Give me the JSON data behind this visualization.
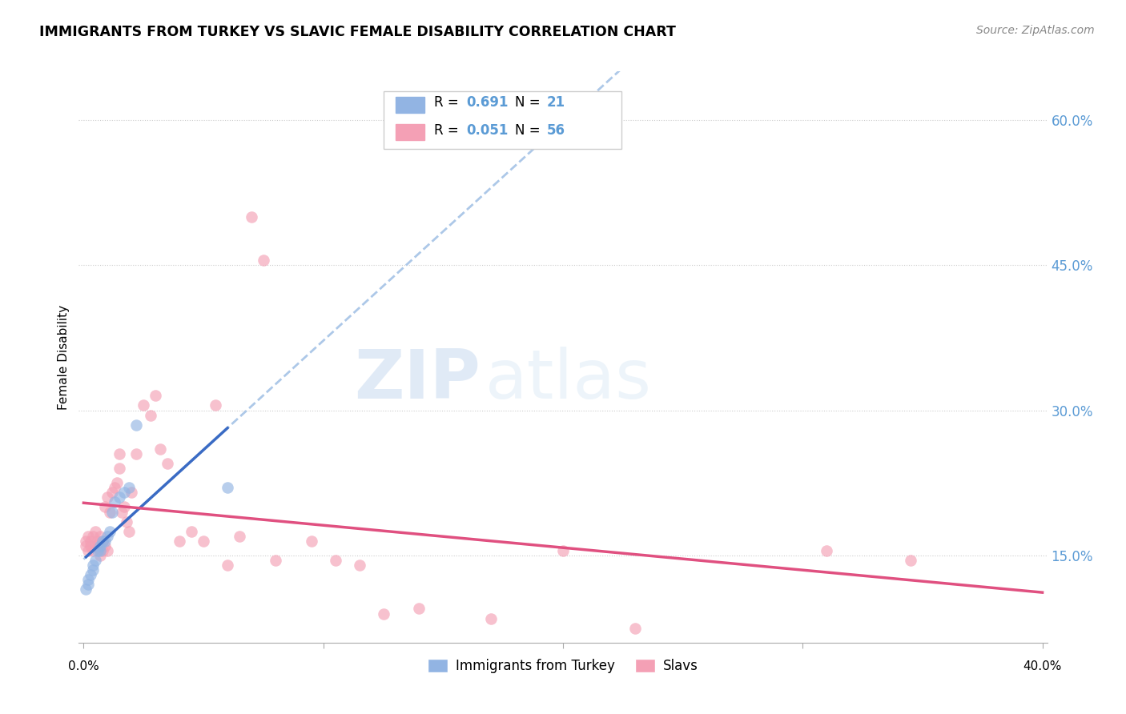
{
  "title": "IMMIGRANTS FROM TURKEY VS SLAVIC FEMALE DISABILITY CORRELATION CHART",
  "source": "Source: ZipAtlas.com",
  "ylabel": "Female Disability",
  "xlim": [
    0.0,
    0.4
  ],
  "ylim": [
    0.06,
    0.65
  ],
  "yticks": [
    0.15,
    0.3,
    0.45,
    0.6
  ],
  "ytick_labels": [
    "15.0%",
    "30.0%",
    "45.0%",
    "60.0%"
  ],
  "turkey_R": "0.691",
  "turkey_N": "21",
  "slavs_R": "0.051",
  "slavs_N": "56",
  "turkey_color": "#92B4E3",
  "slavs_color": "#F4A0B5",
  "turkey_line_color": "#3a6bc4",
  "slavs_line_color": "#e05080",
  "dashed_line_color": "#adc8e8",
  "watermark_zip": "ZIP",
  "watermark_atlas": "atlas",
  "turkey_points_x": [
    0.001,
    0.002,
    0.002,
    0.003,
    0.004,
    0.004,
    0.005,
    0.006,
    0.007,
    0.007,
    0.008,
    0.009,
    0.01,
    0.011,
    0.012,
    0.013,
    0.015,
    0.017,
    0.019,
    0.022,
    0.06
  ],
  "turkey_points_y": [
    0.115,
    0.12,
    0.125,
    0.13,
    0.135,
    0.14,
    0.145,
    0.155,
    0.155,
    0.16,
    0.165,
    0.165,
    0.17,
    0.175,
    0.195,
    0.205,
    0.21,
    0.215,
    0.22,
    0.285,
    0.22
  ],
  "slavs_points_x": [
    0.001,
    0.001,
    0.002,
    0.002,
    0.003,
    0.003,
    0.004,
    0.004,
    0.005,
    0.005,
    0.006,
    0.006,
    0.007,
    0.007,
    0.008,
    0.008,
    0.009,
    0.009,
    0.01,
    0.01,
    0.011,
    0.012,
    0.013,
    0.014,
    0.015,
    0.015,
    0.016,
    0.017,
    0.018,
    0.019,
    0.02,
    0.022,
    0.025,
    0.028,
    0.03,
    0.032,
    0.035,
    0.04,
    0.045,
    0.05,
    0.055,
    0.06,
    0.065,
    0.07,
    0.075,
    0.08,
    0.095,
    0.105,
    0.115,
    0.125,
    0.14,
    0.17,
    0.2,
    0.23,
    0.31,
    0.345
  ],
  "slavs_points_y": [
    0.16,
    0.165,
    0.155,
    0.17,
    0.16,
    0.165,
    0.155,
    0.17,
    0.16,
    0.175,
    0.158,
    0.165,
    0.15,
    0.17,
    0.155,
    0.165,
    0.16,
    0.2,
    0.155,
    0.21,
    0.195,
    0.215,
    0.22,
    0.225,
    0.24,
    0.255,
    0.195,
    0.2,
    0.185,
    0.175,
    0.215,
    0.255,
    0.305,
    0.295,
    0.315,
    0.26,
    0.245,
    0.165,
    0.175,
    0.165,
    0.305,
    0.14,
    0.17,
    0.5,
    0.455,
    0.145,
    0.165,
    0.145,
    0.14,
    0.09,
    0.095,
    0.085,
    0.155,
    0.075,
    0.155,
    0.145
  ]
}
